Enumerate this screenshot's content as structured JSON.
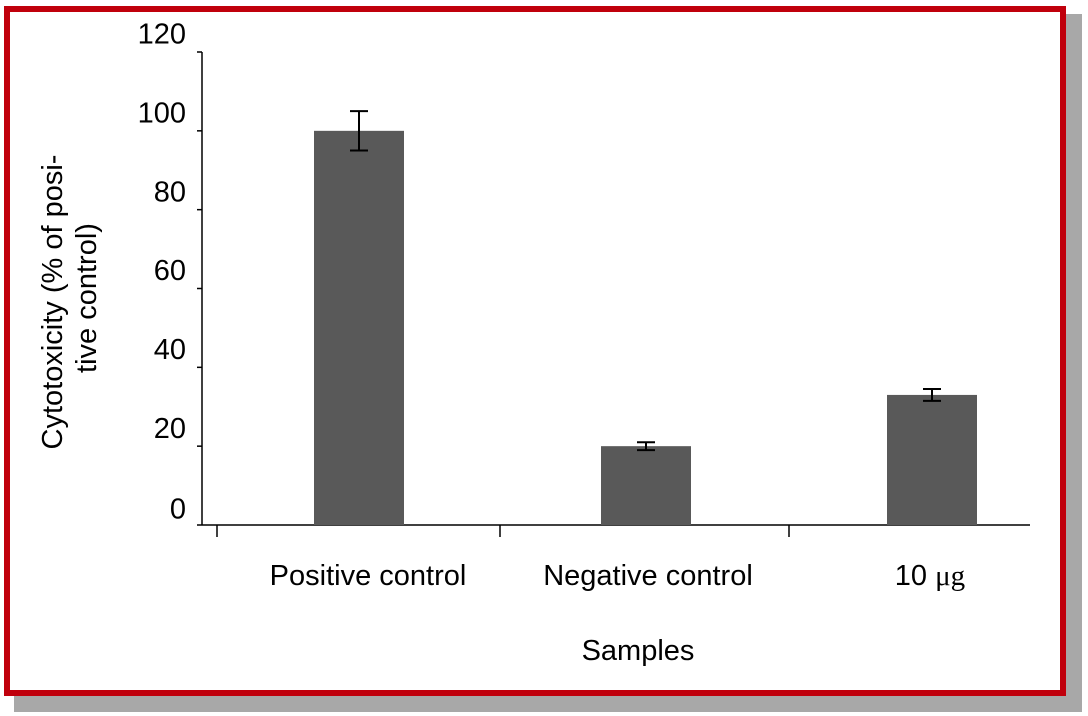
{
  "chart_data": {
    "type": "bar",
    "title": "",
    "xlabel": "Samples",
    "ylabel_lines": [
      "Cytotoxicity (% of posi-",
      "tive control)"
    ],
    "categories": [
      "Positive control",
      "Negative control",
      "10 μg"
    ],
    "values": [
      100,
      20,
      33
    ],
    "error": [
      5,
      1,
      1.5
    ],
    "ylim": [
      0,
      120
    ],
    "yticks": [
      0,
      20,
      40,
      60,
      80,
      100,
      120
    ],
    "grid": false,
    "legend": "none"
  },
  "colors": {
    "bar": "#595959",
    "axis": "#000000",
    "frame_border": "#c0000c",
    "frame_shadow": "#a8a8a8"
  }
}
